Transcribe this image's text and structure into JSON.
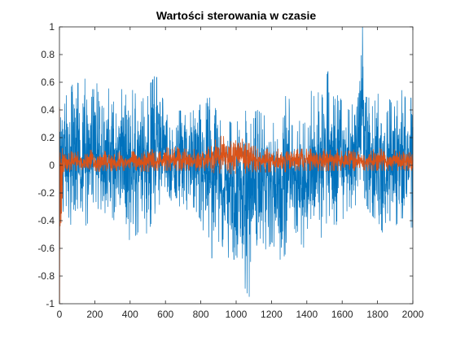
{
  "chart_data": {
    "type": "line",
    "title": "Wartości sterowania w czasie",
    "xlabel": "",
    "ylabel": "",
    "xlim": [
      0,
      2000
    ],
    "ylim": [
      -1,
      1
    ],
    "x_ticks": [
      0,
      200,
      400,
      600,
      800,
      1000,
      1200,
      1400,
      1600,
      1800,
      2000
    ],
    "y_ticks": [
      -1,
      -0.8,
      -0.6,
      -0.4,
      -0.2,
      0,
      0.2,
      0.4,
      0.6,
      0.8,
      1
    ],
    "x_tick_labels": [
      "0",
      "200",
      "400",
      "600",
      "800",
      "1000",
      "1200",
      "1400",
      "1600",
      "1800",
      "2000"
    ],
    "y_tick_labels": [
      "-1",
      "-0.8",
      "-0.6",
      "-0.4",
      "-0.2",
      "0",
      "0.2",
      "0.4",
      "0.6",
      "0.8",
      "1"
    ],
    "grid": false,
    "series": [
      {
        "color": "#0072BD",
        "x": [
          0,
          20,
          40,
          60,
          80,
          100,
          120,
          140,
          160,
          180,
          200,
          220,
          240,
          260,
          280,
          300,
          320,
          340,
          360,
          380,
          400,
          420,
          440,
          460,
          480,
          500,
          520,
          540,
          560,
          580,
          600,
          620,
          640,
          660,
          680,
          700,
          720,
          740,
          760,
          780,
          800,
          820,
          840,
          860,
          880,
          900,
          920,
          940,
          960,
          980,
          1000,
          1020,
          1040,
          1060,
          1080,
          1100,
          1120,
          1140,
          1160,
          1180,
          1200,
          1220,
          1240,
          1260,
          1280,
          1300,
          1320,
          1340,
          1360,
          1380,
          1400,
          1420,
          1440,
          1460,
          1480,
          1500,
          1520,
          1540,
          1560,
          1580,
          1600,
          1620,
          1640,
          1660,
          1680,
          1700,
          1720,
          1740,
          1760,
          1780,
          1800,
          1820,
          1840,
          1860,
          1880,
          1900,
          1920,
          1940,
          1960,
          1980,
          2000
        ],
        "y_max": [
          0.45,
          0.62,
          0.5,
          0.55,
          0.6,
          0.6,
          0.58,
          0.62,
          0.65,
          0.55,
          0.55,
          0.62,
          0.7,
          0.6,
          0.55,
          0.45,
          0.48,
          0.55,
          0.55,
          0.5,
          0.6,
          0.52,
          0.52,
          0.45,
          0.5,
          0.58,
          0.6,
          0.65,
          0.62,
          0.5,
          0.42,
          0.3,
          0.32,
          0.35,
          0.4,
          0.38,
          0.35,
          0.38,
          0.4,
          0.42,
          0.44,
          0.4,
          0.5,
          0.48,
          0.42,
          0.35,
          0.3,
          0.28,
          0.32,
          0.3,
          0.3,
          0.35,
          0.38,
          0.4,
          0.42,
          0.38,
          0.4,
          0.38,
          0.36,
          0.38,
          0.35,
          0.38,
          0.42,
          0.45,
          0.5,
          0.48,
          0.4,
          0.35,
          0.32,
          0.3,
          0.32,
          0.55,
          0.5,
          0.52,
          0.55,
          0.6,
          0.68,
          0.52,
          0.48,
          0.52,
          0.45,
          0.42,
          0.4,
          0.45,
          0.62,
          0.85,
          1.0,
          0.6,
          0.4,
          0.45,
          0.52,
          0.5,
          0.55,
          0.5,
          0.45,
          0.42,
          0.5,
          0.55,
          0.48,
          0.52,
          0.45
        ],
        "y_min": [
          -0.62,
          -0.5,
          -0.45,
          -0.52,
          -0.5,
          -0.48,
          -0.5,
          -0.45,
          -0.42,
          -0.45,
          -0.4,
          -0.5,
          -0.45,
          -0.42,
          -0.4,
          -0.38,
          -0.42,
          -0.45,
          -0.48,
          -0.5,
          -0.55,
          -0.52,
          -0.5,
          -0.45,
          -0.48,
          -0.5,
          -0.42,
          -0.35,
          -0.3,
          -0.25,
          -0.2,
          -0.22,
          -0.28,
          -0.3,
          -0.32,
          -0.3,
          -0.32,
          -0.35,
          -0.3,
          -0.35,
          -0.4,
          -0.5,
          -0.62,
          -0.68,
          -0.6,
          -0.55,
          -0.58,
          -0.62,
          -0.68,
          -0.7,
          -0.65,
          -0.72,
          -0.82,
          -0.95,
          -0.7,
          -0.68,
          -0.72,
          -0.65,
          -0.6,
          -0.62,
          -0.55,
          -0.6,
          -0.65,
          -0.72,
          -0.68,
          -0.6,
          -0.58,
          -0.62,
          -0.55,
          -0.6,
          -0.55,
          -0.5,
          -0.5,
          -0.48,
          -0.52,
          -0.55,
          -0.5,
          -0.45,
          -0.42,
          -0.45,
          -0.4,
          -0.35,
          -0.3,
          -0.32,
          -0.28,
          -0.25,
          -0.2,
          -0.3,
          -0.35,
          -0.38,
          -0.4,
          -0.45,
          -0.55,
          -0.62,
          -0.5,
          -0.45,
          -0.4,
          -0.38,
          -0.42,
          -0.45,
          -0.45
        ]
      },
      {
        "color": "#D95319",
        "x": [
          0,
          20,
          40,
          60,
          80,
          100,
          120,
          140,
          160,
          180,
          200,
          220,
          240,
          260,
          280,
          300,
          320,
          340,
          360,
          380,
          400,
          420,
          440,
          460,
          480,
          500,
          520,
          540,
          560,
          580,
          600,
          620,
          640,
          660,
          680,
          700,
          720,
          740,
          760,
          780,
          800,
          820,
          840,
          860,
          880,
          900,
          920,
          940,
          960,
          980,
          1000,
          1020,
          1040,
          1060,
          1080,
          1100,
          1120,
          1140,
          1160,
          1180,
          1200,
          1220,
          1240,
          1260,
          1280,
          1300,
          1320,
          1340,
          1360,
          1380,
          1400,
          1420,
          1440,
          1460,
          1480,
          1500,
          1520,
          1540,
          1560,
          1580,
          1600,
          1620,
          1640,
          1660,
          1680,
          1700,
          1720,
          1740,
          1760,
          1780,
          1800,
          1820,
          1840,
          1860,
          1880,
          1900,
          1920,
          1940,
          1960,
          1980,
          2000
        ],
        "y_max": [
          0.42,
          0.12,
          0.1,
          0.1,
          0.11,
          0.1,
          0.1,
          0.1,
          0.12,
          0.11,
          0.1,
          0.1,
          0.12,
          0.1,
          0.1,
          0.08,
          0.08,
          0.1,
          0.1,
          0.08,
          0.1,
          0.1,
          0.08,
          0.08,
          0.1,
          0.1,
          0.12,
          0.1,
          0.1,
          0.1,
          0.14,
          0.12,
          0.12,
          0.14,
          0.12,
          0.12,
          0.12,
          0.12,
          0.12,
          0.1,
          0.1,
          0.12,
          0.14,
          0.16,
          0.2,
          0.18,
          0.22,
          0.2,
          0.18,
          0.22,
          0.2,
          0.22,
          0.18,
          0.16,
          0.16,
          0.14,
          0.14,
          0.12,
          0.12,
          0.12,
          0.12,
          0.12,
          0.12,
          0.12,
          0.14,
          0.12,
          0.12,
          0.12,
          0.12,
          0.12,
          0.12,
          0.12,
          0.12,
          0.12,
          0.12,
          0.12,
          0.14,
          0.12,
          0.12,
          0.12,
          0.1,
          0.1,
          0.12,
          0.12,
          0.1,
          0.1,
          0.1,
          0.1,
          0.1,
          0.12,
          0.14,
          0.12,
          0.1,
          0.1,
          0.1,
          0.12,
          0.1,
          0.1,
          0.1,
          0.1,
          0.1
        ],
        "y_min": [
          -1.0,
          -0.05,
          -0.04,
          -0.05,
          -0.04,
          -0.04,
          -0.05,
          -0.04,
          -0.04,
          -0.05,
          -0.04,
          -0.05,
          -0.04,
          -0.04,
          -0.05,
          -0.04,
          -0.04,
          -0.05,
          -0.04,
          -0.04,
          -0.05,
          -0.04,
          -0.04,
          -0.05,
          -0.04,
          -0.05,
          -0.04,
          -0.04,
          -0.04,
          -0.04,
          -0.04,
          -0.04,
          -0.04,
          -0.04,
          -0.04,
          -0.04,
          -0.04,
          -0.04,
          -0.04,
          -0.04,
          -0.04,
          -0.04,
          -0.05,
          -0.05,
          -0.06,
          -0.06,
          -0.06,
          -0.06,
          -0.06,
          -0.07,
          -0.06,
          -0.06,
          -0.06,
          -0.06,
          -0.05,
          -0.05,
          -0.05,
          -0.05,
          -0.05,
          -0.05,
          -0.05,
          -0.05,
          -0.05,
          -0.05,
          -0.05,
          -0.04,
          -0.04,
          -0.04,
          -0.04,
          -0.04,
          -0.04,
          -0.04,
          -0.04,
          -0.04,
          -0.04,
          -0.04,
          -0.04,
          -0.04,
          -0.04,
          -0.04,
          -0.04,
          -0.04,
          -0.04,
          -0.04,
          -0.04,
          -0.04,
          -0.04,
          -0.04,
          -0.04,
          -0.04,
          -0.04,
          -0.04,
          -0.04,
          -0.04,
          -0.04,
          -0.04,
          -0.04,
          -0.04,
          -0.04,
          -0.04,
          -0.04
        ]
      }
    ]
  }
}
